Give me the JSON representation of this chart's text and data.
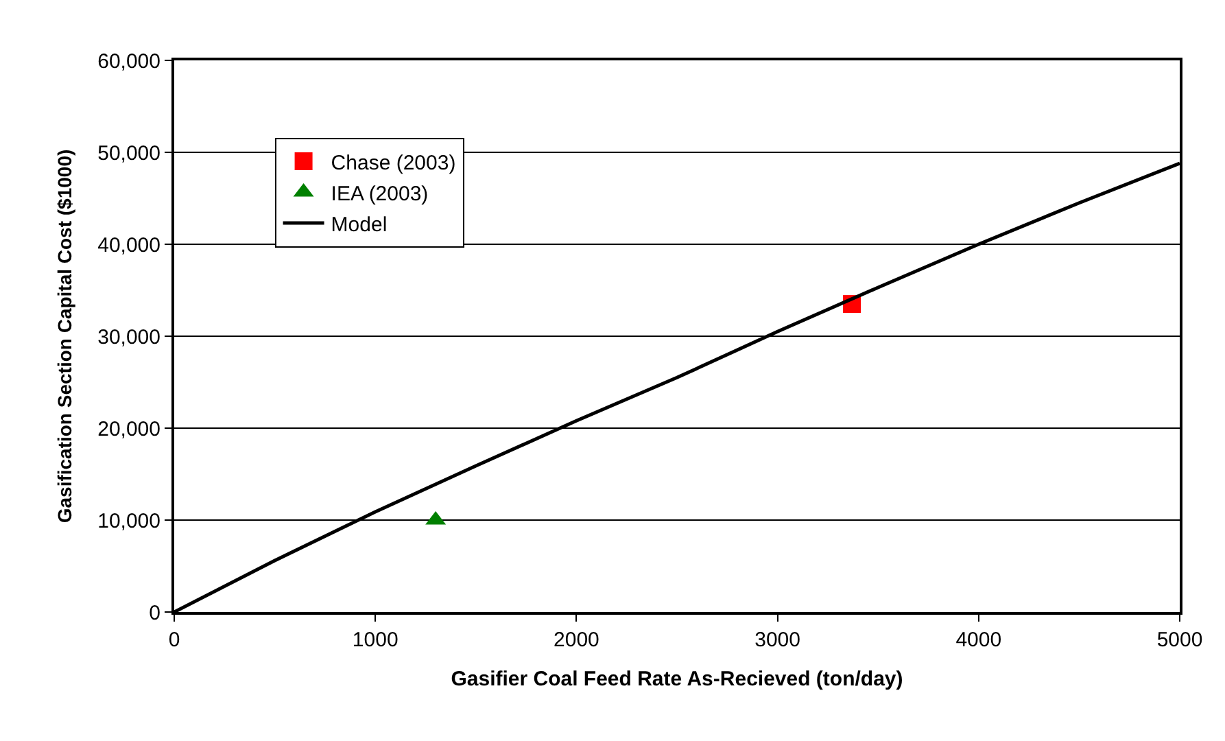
{
  "chart_data": {
    "type": "line",
    "xlabel": "Gasifier Coal Feed Rate As-Recieved (ton/day)",
    "ylabel": "Gasification Section Capital Cost ($1000)",
    "xlim": [
      0,
      5000
    ],
    "xticks": [
      0,
      1000,
      2000,
      3000,
      4000,
      5000
    ],
    "ylim": [
      0,
      60000
    ],
    "yticks": [
      {
        "value": 0,
        "label": "0"
      },
      {
        "value": 10000,
        "label": "10,000"
      },
      {
        "value": 20000,
        "label": "20,000"
      },
      {
        "value": 30000,
        "label": "30,000"
      },
      {
        "value": 40000,
        "label": "40,000"
      },
      {
        "value": 50000,
        "label": "50,000"
      },
      {
        "value": 60000,
        "label": "60,000"
      }
    ],
    "grid": "y",
    "legend": "top left",
    "series": [
      {
        "name": "Chase (2003)",
        "type": "scatter",
        "marker": "square",
        "color": "#ff0000",
        "x": [
          3370
        ],
        "values": [
          33500
        ]
      },
      {
        "name": "IEA (2003)",
        "type": "scatter",
        "marker": "triangle",
        "color": "#008000",
        "x": [
          1300
        ],
        "values": [
          10000
        ]
      },
      {
        "name": "Model",
        "marker": "none",
        "color": "#000000",
        "x": [
          0,
          500,
          1000,
          1500,
          2000,
          2500,
          3000,
          3500,
          4000,
          4500,
          5000
        ],
        "values": [
          0,
          5600,
          10900,
          15900,
          20800,
          25500,
          30500,
          35300,
          40000,
          44500,
          48800
        ]
      }
    ]
  }
}
